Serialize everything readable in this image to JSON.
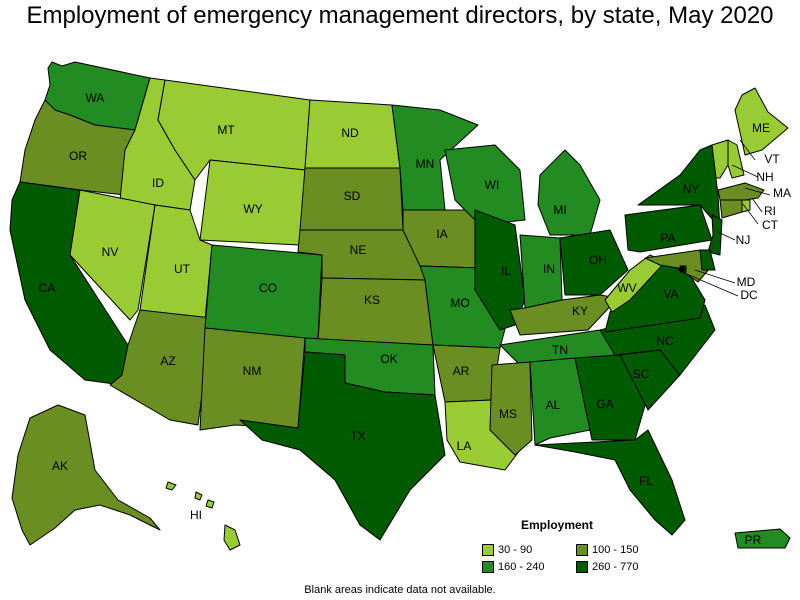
{
  "title": "Employment of emergency management directors, by state, May 2020",
  "footer": "Blank areas indicate data not available.",
  "legend": {
    "title": "Employment",
    "bins": [
      {
        "label": "30 - 90",
        "color": "#99cc33"
      },
      {
        "label": "100 - 150",
        "color": "#6b8e23"
      },
      {
        "label": "160 - 240",
        "color": "#228b22"
      },
      {
        "label": "260 - 770",
        "color": "#005a00"
      }
    ]
  },
  "states": {
    "WA": {
      "label": "WA",
      "bin": 2
    },
    "OR": {
      "label": "OR",
      "bin": 1
    },
    "CA": {
      "label": "CA",
      "bin": 3
    },
    "ID": {
      "label": "ID",
      "bin": 0
    },
    "NV": {
      "label": "NV",
      "bin": 0
    },
    "MT": {
      "label": "MT",
      "bin": 0
    },
    "WY": {
      "label": "WY",
      "bin": 0
    },
    "UT": {
      "label": "UT",
      "bin": 0
    },
    "AZ": {
      "label": "AZ",
      "bin": 1
    },
    "CO": {
      "label": "CO",
      "bin": 2
    },
    "NM": {
      "label": "NM",
      "bin": 1
    },
    "ND": {
      "label": "ND",
      "bin": 0
    },
    "SD": {
      "label": "SD",
      "bin": 1
    },
    "NE": {
      "label": "NE",
      "bin": 1
    },
    "KS": {
      "label": "KS",
      "bin": 1
    },
    "OK": {
      "label": "OK",
      "bin": 2
    },
    "TX": {
      "label": "TX",
      "bin": 3
    },
    "MN": {
      "label": "MN",
      "bin": 2
    },
    "IA": {
      "label": "IA",
      "bin": 1
    },
    "MO": {
      "label": "MO",
      "bin": 2
    },
    "AR": {
      "label": "AR",
      "bin": 1
    },
    "LA": {
      "label": "LA",
      "bin": 0
    },
    "WI": {
      "label": "WI",
      "bin": 2
    },
    "IL": {
      "label": "IL",
      "bin": 3
    },
    "MI": {
      "label": "MI",
      "bin": 2
    },
    "IN": {
      "label": "IN",
      "bin": 2
    },
    "OH": {
      "label": "OH",
      "bin": 3
    },
    "KY": {
      "label": "KY",
      "bin": 1
    },
    "TN": {
      "label": "TN",
      "bin": 2
    },
    "MS": {
      "label": "MS",
      "bin": 1
    },
    "AL": {
      "label": "AL",
      "bin": 2
    },
    "GA": {
      "label": "GA",
      "bin": 3
    },
    "FL": {
      "label": "FL",
      "bin": 3
    },
    "SC": {
      "label": "SC",
      "bin": 3
    },
    "NC": {
      "label": "NC",
      "bin": 3
    },
    "VA": {
      "label": "VA",
      "bin": 3
    },
    "WV": {
      "label": "WV",
      "bin": 0
    },
    "PA": {
      "label": "PA",
      "bin": 3
    },
    "NY": {
      "label": "NY",
      "bin": 3
    },
    "ME": {
      "label": "ME",
      "bin": 0
    },
    "NH": {
      "label": "NH",
      "bin": 0
    },
    "VT": {
      "label": "VT",
      "bin": 0
    },
    "MA": {
      "label": "MA",
      "bin": 1
    },
    "CT": {
      "label": "CT",
      "bin": 1
    },
    "RI": {
      "label": "RI",
      "bin": 0
    },
    "NJ": {
      "label": "NJ",
      "bin": 3
    },
    "MD": {
      "label": "MD",
      "bin": 1
    },
    "DE": {
      "label": "",
      "bin": 3
    },
    "DC": {
      "label": "DC",
      "bin": 3
    },
    "AK": {
      "label": "AK",
      "bin": 1
    },
    "HI": {
      "label": "HI",
      "bin": 0
    },
    "PR": {
      "label": "PR",
      "bin": 2
    }
  }
}
